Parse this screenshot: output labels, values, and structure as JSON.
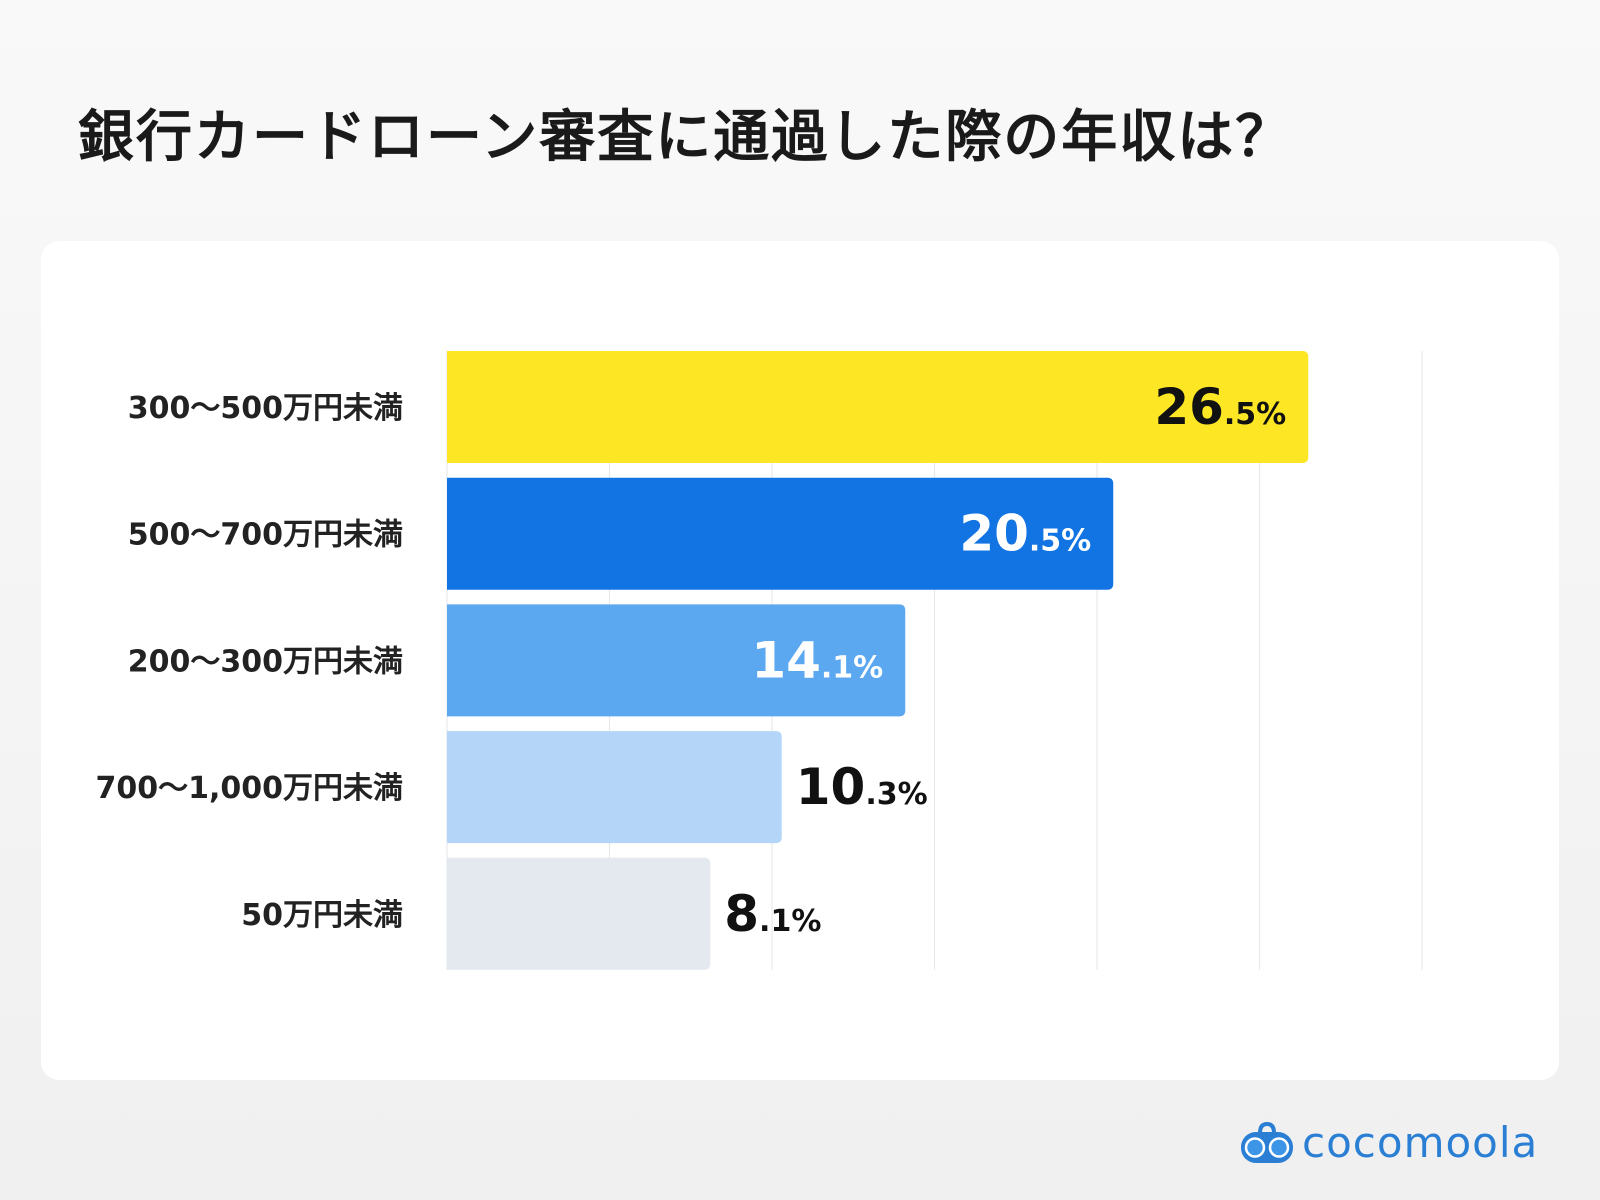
{
  "title": "銀行カードローン審査に通過した際の年収は？",
  "brand": "cocomoola",
  "chart_data": {
    "type": "bar",
    "orientation": "horizontal",
    "title": "銀行カードローン審査に通過した際の年収は？",
    "categories": [
      "300〜500万円未満",
      "500〜700万円未満",
      "200〜300万円未満",
      "700〜1,000万円未満",
      "50万円未満"
    ],
    "values": [
      26.5,
      20.5,
      14.1,
      10.3,
      8.1
    ],
    "labels": [
      {
        "int": "26",
        "dec": ".5%"
      },
      {
        "int": "20",
        "dec": ".5%"
      },
      {
        "int": "14",
        "dec": ".1%"
      },
      {
        "int": "10",
        "dec": ".3%"
      },
      {
        "int": "8",
        "dec": ".1%"
      }
    ],
    "colors": [
      "#fde724",
      "#1273e3",
      "#5ba8f0",
      "#b4d5f8",
      "#e4e8ef"
    ],
    "label_colors": [
      "#111111",
      "#ffffff",
      "#ffffff",
      "#111111",
      "#111111"
    ],
    "label_inside": [
      true,
      true,
      true,
      false,
      false
    ],
    "xlim": [
      0,
      30
    ],
    "grid": true,
    "unit": "%"
  }
}
